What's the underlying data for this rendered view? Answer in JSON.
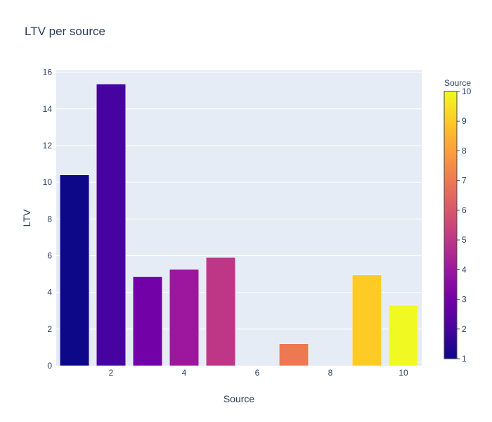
{
  "chart_data": {
    "type": "bar",
    "title": "LTV per source",
    "xlabel": "Source",
    "ylabel": "LTV",
    "x": [
      1,
      2,
      3,
      4,
      5,
      6,
      7,
      8,
      9,
      10
    ],
    "values": [
      10.4,
      15.35,
      4.85,
      5.25,
      5.9,
      0,
      1.2,
      0,
      4.95,
      3.3
    ],
    "xlim": [
      0.5,
      10.5
    ],
    "ylim": [
      0,
      16.1
    ],
    "xticks": [
      2,
      4,
      6,
      8,
      10
    ],
    "yticks": [
      0,
      2,
      4,
      6,
      8,
      10,
      12,
      14,
      16
    ],
    "grid": true,
    "colorbar": {
      "title": "Source",
      "min": 1,
      "max": 10,
      "ticks": [
        1,
        2,
        3,
        4,
        5,
        6,
        7,
        8,
        9,
        10
      ],
      "colorscale": [
        "#0d0887",
        "#46039f",
        "#7201a8",
        "#9c179e",
        "#bd3786",
        "#d8576b",
        "#ed7953",
        "#fb9f3a",
        "#fdca26",
        "#f0f921"
      ]
    },
    "plot_bg": "#e5ecf6"
  }
}
